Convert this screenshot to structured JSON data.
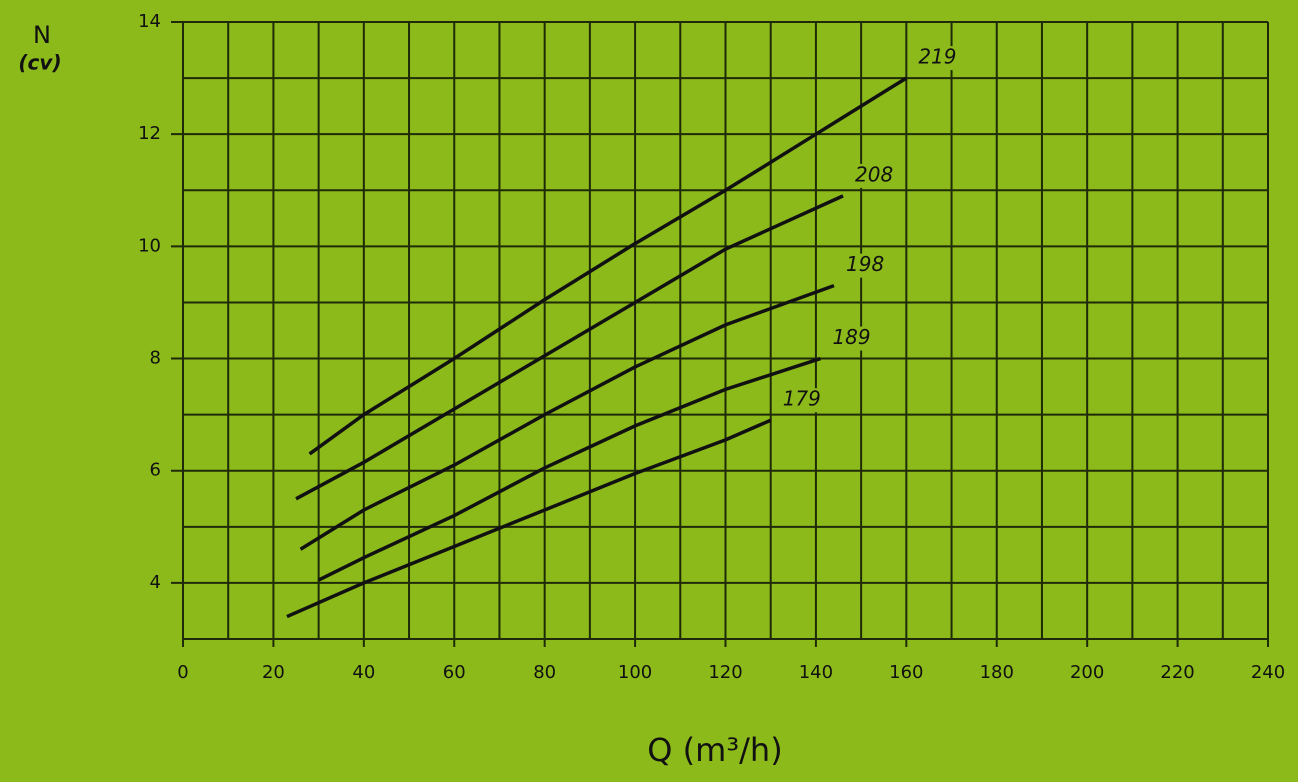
{
  "chart_data": {
    "type": "line",
    "y_label": "N",
    "y_unit": "(cv)",
    "x_label": "Q (m³/h)",
    "xlim": [
      0,
      240
    ],
    "xticks": [
      0,
      20,
      40,
      60,
      80,
      100,
      120,
      140,
      160,
      180,
      200,
      220,
      240
    ],
    "x_minor_ticks": [
      10,
      30,
      50,
      70,
      90,
      110,
      130,
      150,
      170,
      190,
      210,
      230
    ],
    "ylim": [
      3,
      14
    ],
    "yticks": [
      4,
      6,
      8,
      10,
      12,
      14
    ],
    "y_minor_ticks": [
      3,
      5,
      7,
      9,
      11,
      13
    ],
    "grid": true,
    "series": [
      {
        "name": "219",
        "color": "#111111",
        "x": [
          28,
          40,
          60,
          80,
          100,
          120,
          140,
          160
        ],
        "values": [
          6.3,
          7.0,
          8.0,
          9.05,
          10.05,
          11.0,
          12.0,
          13.0
        ]
      },
      {
        "name": "208",
        "color": "#111111",
        "x": [
          25,
          40,
          60,
          80,
          100,
          120,
          146
        ],
        "values": [
          5.5,
          6.15,
          7.1,
          8.05,
          9.0,
          9.95,
          10.9
        ]
      },
      {
        "name": "198",
        "color": "#111111",
        "x": [
          26,
          40,
          60,
          80,
          100,
          120,
          144
        ],
        "values": [
          4.6,
          5.3,
          6.1,
          7.0,
          7.85,
          8.6,
          9.3
        ]
      },
      {
        "name": "189",
        "color": "#111111",
        "x": [
          30,
          40,
          60,
          80,
          100,
          120,
          141
        ],
        "values": [
          4.05,
          4.45,
          5.2,
          6.05,
          6.8,
          7.45,
          8.0
        ]
      },
      {
        "name": "179",
        "color": "#111111",
        "x": [
          23,
          40,
          60,
          80,
          100,
          120,
          130
        ],
        "values": [
          3.4,
          4.0,
          4.65,
          5.3,
          5.95,
          6.55,
          6.9
        ]
      }
    ]
  }
}
